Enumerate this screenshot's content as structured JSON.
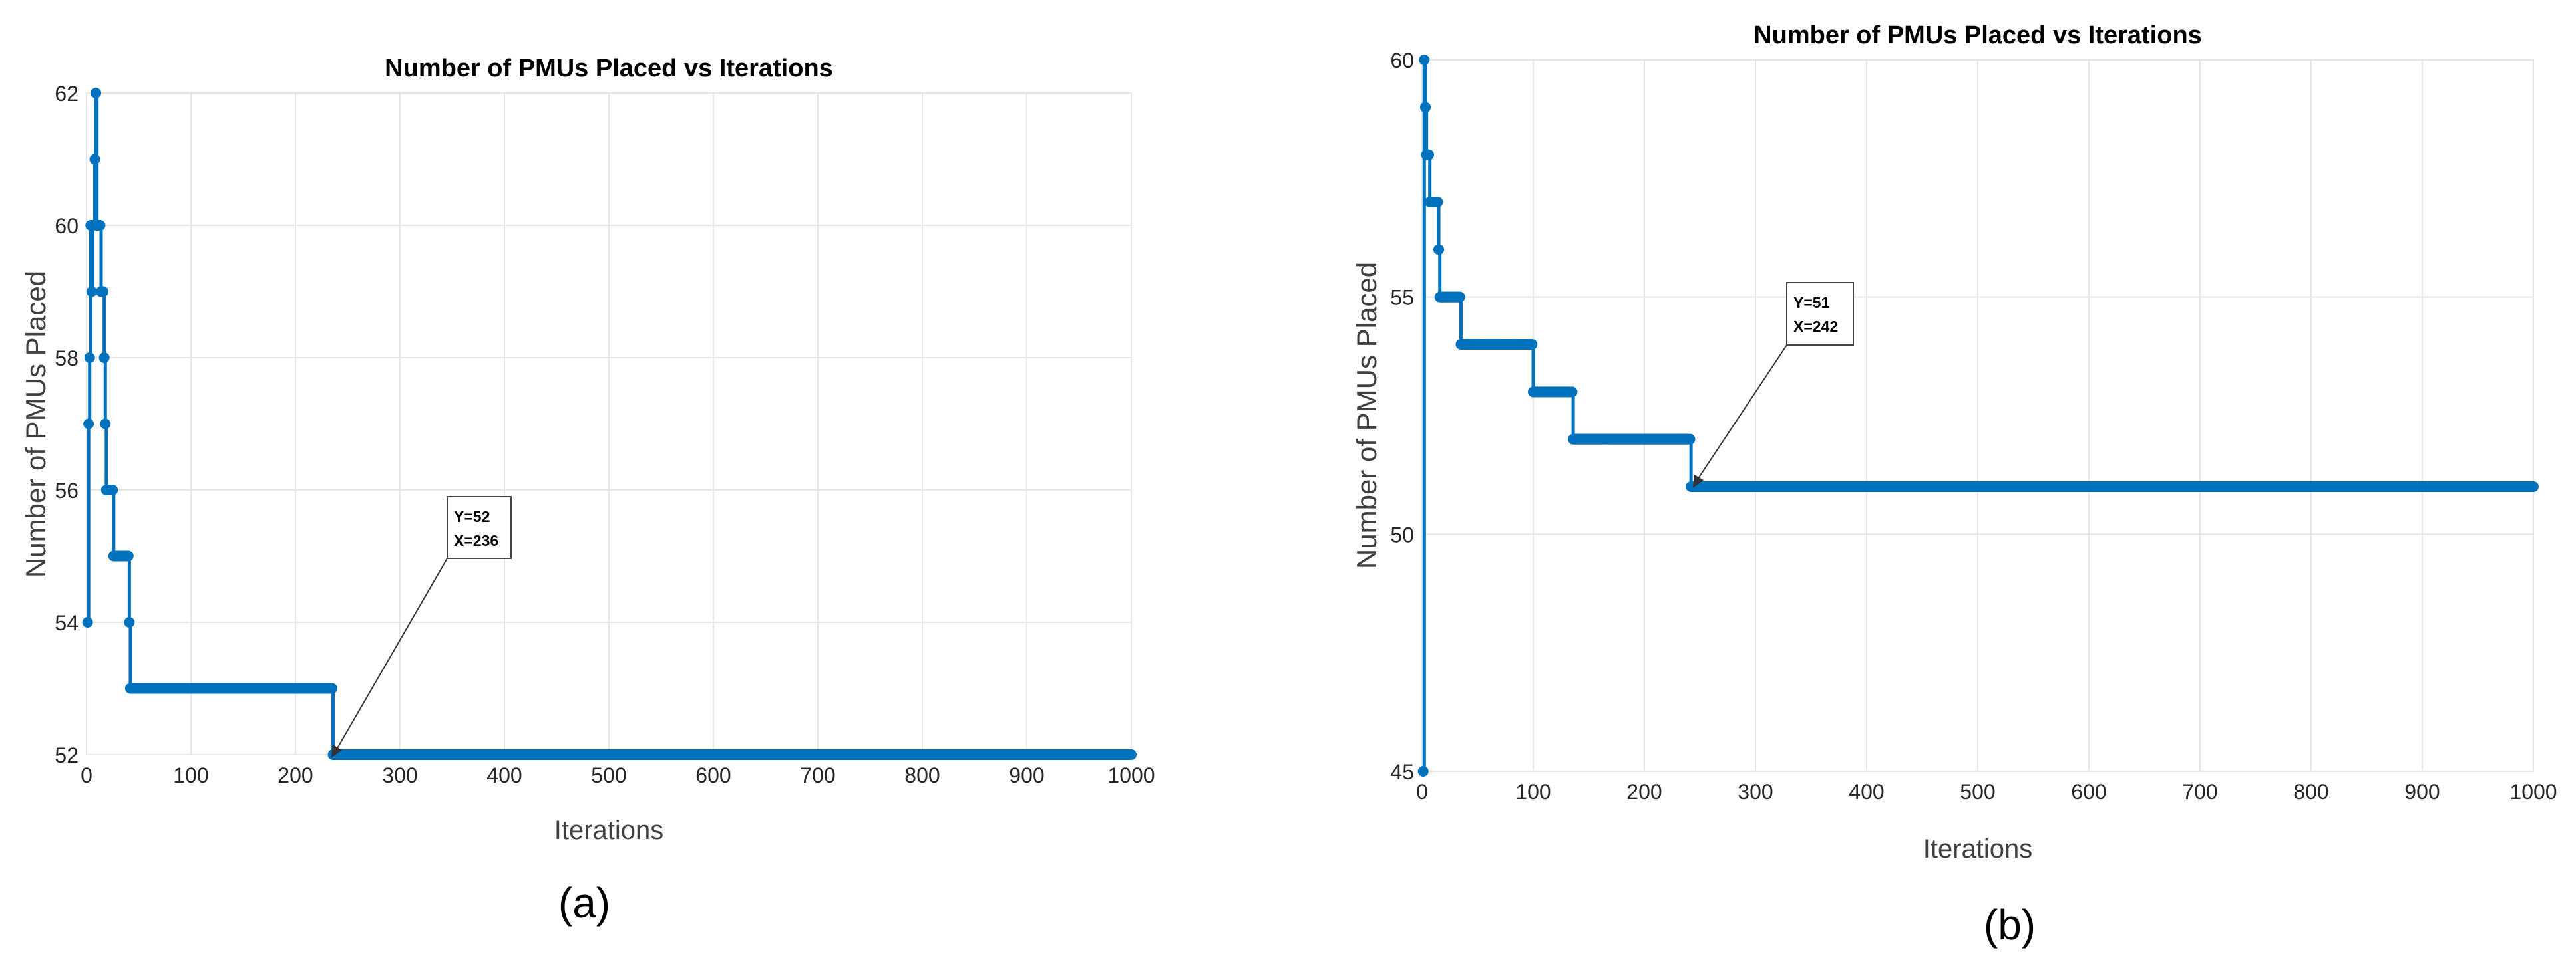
{
  "panels": [
    {
      "label": "(a)"
    },
    {
      "label": "(b)"
    }
  ],
  "chart_data": [
    {
      "type": "line",
      "title": "Number of PMUs Placed vs Iterations",
      "xlabel": "Iterations",
      "ylabel": "Number of PMUs Placed",
      "xlim": [
        0,
        1000
      ],
      "ylim": [
        52,
        62
      ],
      "xticks": [
        0,
        100,
        200,
        300,
        400,
        500,
        600,
        700,
        800,
        900,
        1000
      ],
      "yticks": [
        52,
        54,
        56,
        58,
        60,
        62
      ],
      "grid": true,
      "marker": "dot",
      "color": "#0072BD",
      "series": [
        {
          "x": [
            1,
            2,
            3,
            4,
            5,
            6,
            7,
            8,
            9,
            10,
            11,
            12,
            13,
            14,
            15,
            16,
            17,
            18,
            19,
            20,
            21,
            22,
            23,
            24,
            25,
            26,
            27,
            28,
            29,
            30,
            31,
            32,
            33,
            34,
            35,
            36,
            37,
            38,
            39,
            40,
            41,
            42,
            43,
            44,
            45,
            46,
            47,
            48,
            49,
            50,
            236,
            1000
          ],
          "y": [
            54,
            57,
            58,
            60,
            59,
            60,
            60,
            61,
            62,
            60,
            60,
            60,
            60,
            59,
            59,
            59,
            58,
            57,
            56,
            56,
            56,
            56,
            56,
            56,
            56,
            55,
            55,
            55,
            55,
            55,
            55,
            55,
            55,
            55,
            55,
            55,
            55,
            55,
            55,
            55,
            54,
            53,
            53,
            53,
            53,
            53,
            53,
            53,
            53,
            53,
            52,
            52
          ]
        }
      ],
      "annotation": {
        "lines": [
          "Y=52",
          "X=236"
        ],
        "x": 236,
        "y": 52
      }
    },
    {
      "type": "line",
      "title": "Number of PMUs Placed vs Iterations",
      "xlabel": "Iterations",
      "ylabel": "Number of PMUs Placed",
      "xlim": [
        0,
        1000
      ],
      "ylim": [
        45,
        60
      ],
      "xticks": [
        0,
        100,
        200,
        300,
        400,
        500,
        600,
        700,
        800,
        900,
        1000
      ],
      "yticks": [
        45,
        50,
        55,
        60
      ],
      "grid": true,
      "marker": "dot",
      "color": "#0072BD",
      "series": [
        {
          "x": [
            1,
            2,
            3,
            4,
            5,
            6,
            7,
            8,
            9,
            10,
            11,
            12,
            13,
            14,
            15,
            16,
            17,
            18,
            19,
            20,
            35,
            100,
            136,
            242,
            1000
          ],
          "y": [
            45,
            60,
            59,
            58,
            58,
            58,
            57,
            57,
            57,
            57,
            57,
            57,
            57,
            57,
            56,
            55,
            55,
            55,
            55,
            55,
            54,
            53,
            52,
            51,
            51
          ]
        }
      ],
      "annotation": {
        "lines": [
          "Y=51",
          "X=242"
        ],
        "x": 242,
        "y": 51
      }
    }
  ]
}
